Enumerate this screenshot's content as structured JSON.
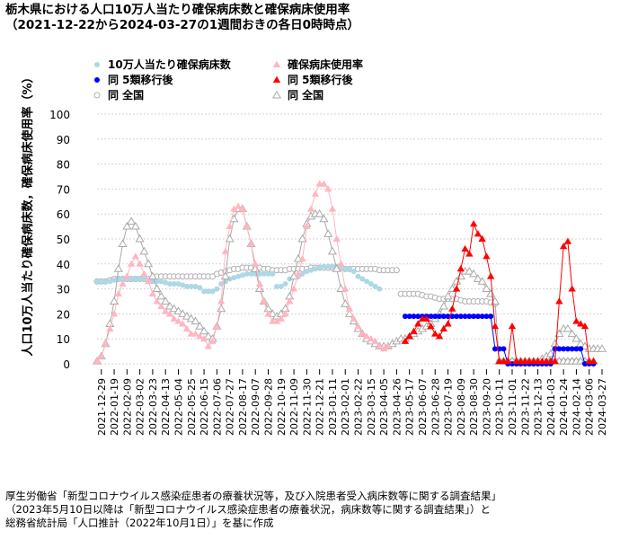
{
  "title": "栃木県における人口10万人当たり確保病床数と確保病床使用率",
  "subtitle": "（2021-12-22から2024-03-27の1週間おきの各日0時時点）",
  "source": [
    "厚生労働省「新型コロナウイルス感染症患者の療養状況等，及び入院患者受入病床数等に関する調査結果」",
    "（2023年5月10日以降は「新型コロナウイルス感染症患者の療養状況，病床数等に関する調査結果」）と",
    "総務省統計局「人口推計（2022年10月1日）」を基に作成"
  ],
  "colors": {
    "beds_pre": "#add8e6",
    "beds_post": "#0000ff",
    "beds_national": "#b0b0b0",
    "usage_pre": "#ffb6c1",
    "usage_post": "#ff0000",
    "usage_national": "#a9a9a9",
    "grid": "#d3d3d3"
  },
  "chart_data": {
    "type": "line",
    "title": "栃木県における人口10万人当たり確保病床数と確保病床使用率",
    "ylabel": "人口10万人当たり確保病床数，確保病床使用率（%）",
    "xlabel": "",
    "ylim": [
      0,
      100
    ],
    "y_ticks": [
      0,
      10,
      20,
      30,
      40,
      50,
      60,
      70,
      80,
      90,
      100
    ],
    "grid": "horizontal dotted",
    "legend_position": "top-left",
    "x_start": "2021-12-22",
    "x_end": "2024-03-27",
    "x_step_days": 7,
    "x_tick_labels": [
      "2021-12-29",
      "2022-01-19",
      "2022-02-09",
      "2022-03-02",
      "2022-03-23",
      "2022-04-13",
      "2022-05-04",
      "2022-05-25",
      "2022-06-15",
      "2022-07-06",
      "2022-07-27",
      "2022-08-17",
      "2022-09-07",
      "2022-09-28",
      "2022-10-19",
      "2022-11-09",
      "2022-11-30",
      "2022-12-21",
      "2023-01-11",
      "2023-02-01",
      "2023-02-22",
      "2023-03-15",
      "2023-04-05",
      "2023-04-26",
      "2023-05-17",
      "2023-06-07",
      "2023-06-28",
      "2023-07-19",
      "2023-08-09",
      "2023-08-30",
      "2023-09-20",
      "2023-10-11",
      "2023-11-01",
      "2023-11-22",
      "2023-12-13",
      "2024-01-03",
      "2024-01-24",
      "2024-02-14",
      "2024-03-06",
      "2024-03-27"
    ],
    "series": [
      {
        "name": "10万人当たり確保病床数",
        "marker": "circle",
        "start": "2021-12-22",
        "values": [
          33,
          33,
          33,
          33,
          33.5,
          34,
          34,
          34,
          34,
          34,
          34,
          34,
          33.5,
          33,
          33,
          33,
          32.5,
          32,
          32,
          32,
          31.5,
          31,
          31,
          31,
          30.5,
          29,
          29,
          29,
          30,
          32,
          33,
          34,
          34.5,
          35,
          35.5,
          36,
          36,
          36,
          36,
          36,
          36,
          36,
          31,
          31,
          32,
          34,
          35,
          35,
          36,
          37,
          37.5,
          38,
          38.5,
          39,
          39,
          39,
          39,
          38.5,
          38,
          38,
          37,
          35,
          34,
          33,
          32,
          31,
          30
        ]
      },
      {
        "name": "同 5類移行後",
        "marker": "circle",
        "start": "2023-05-10",
        "values": [
          19,
          19,
          19,
          19,
          19,
          19,
          19,
          19,
          19,
          19,
          19,
          19,
          19,
          19,
          19,
          19,
          19,
          19,
          19,
          19,
          19,
          6,
          6,
          6,
          0,
          0,
          0,
          0,
          0,
          0,
          0,
          0,
          0,
          0,
          0,
          6,
          6,
          6,
          6,
          6,
          6,
          6,
          0,
          0,
          0
        ]
      },
      {
        "name": "同 全国",
        "marker": "circle-open",
        "start": "2021-12-22",
        "values": [
          33,
          33,
          33,
          33.5,
          34,
          34,
          34,
          34,
          34,
          34,
          34,
          34,
          34,
          34.5,
          35,
          35,
          35,
          35,
          35,
          35,
          35,
          35,
          35,
          35,
          35,
          35,
          35,
          35,
          36,
          36.5,
          37,
          37.5,
          38,
          38,
          38.5,
          38.5,
          38.5,
          38.5,
          38.5,
          38,
          38,
          37.5,
          37.5,
          37.5,
          37.5,
          38,
          38,
          38,
          38,
          38,
          38.5,
          38.5,
          38.5,
          38.5,
          38.5,
          38.5,
          38.5,
          38.5,
          38,
          38,
          38,
          38,
          38,
          38,
          38,
          38,
          37.5,
          37.5,
          37.5,
          37.5,
          37.5,
          28,
          28,
          28,
          28,
          28,
          27.5,
          27,
          27,
          26.5,
          26,
          26,
          26,
          26,
          26,
          25.5,
          25,
          25,
          25,
          25,
          25,
          25,
          24.5,
          24,
          1,
          1,
          1,
          1,
          1,
          1,
          1,
          1,
          1,
          1,
          1,
          1,
          1,
          1,
          1,
          1,
          1,
          1,
          1,
          1,
          1
        ]
      },
      {
        "name": "確保病床使用率",
        "marker": "triangle",
        "start": "2021-12-22",
        "values": [
          1,
          3,
          8,
          14,
          20,
          28,
          32,
          35,
          40,
          43,
          40,
          36,
          33,
          28,
          25,
          23,
          21,
          20,
          18,
          17,
          16,
          14,
          12,
          12,
          11,
          10,
          7,
          9,
          15,
          25,
          45,
          55,
          62,
          63,
          62,
          55,
          48,
          40,
          32,
          25,
          20,
          17,
          17,
          18,
          20,
          25,
          30,
          36,
          42,
          55,
          62,
          68,
          72,
          72,
          70,
          62,
          50,
          40,
          30,
          22,
          18,
          15,
          12,
          11,
          10,
          9,
          7,
          6,
          7
        ]
      },
      {
        "name": "同 5類移行後",
        "marker": "triangle",
        "start": "2023-05-10",
        "values": [
          9,
          11,
          13,
          16,
          18,
          18,
          15,
          12,
          11,
          14,
          16,
          22,
          30,
          38,
          46,
          44,
          56,
          52,
          50,
          43,
          35,
          15,
          1,
          1,
          1,
          15,
          1,
          1,
          1,
          1,
          1,
          1,
          1,
          1,
          1,
          1,
          25,
          47,
          49,
          30,
          17,
          16,
          15,
          1,
          1
        ]
      },
      {
        "name": "同 全国",
        "marker": "triangle-open",
        "start": "2021-12-22",
        "values": [
          1,
          3,
          8,
          16,
          25,
          38,
          48,
          55,
          57,
          55,
          50,
          45,
          40,
          35,
          30,
          27,
          25,
          23,
          22,
          21,
          20,
          19,
          18,
          17,
          15,
          13,
          11,
          10,
          15,
          22,
          35,
          50,
          58,
          62,
          62,
          55,
          48,
          38,
          30,
          25,
          22,
          20,
          19,
          20,
          22,
          27,
          35,
          42,
          50,
          56,
          59,
          60,
          60,
          58,
          52,
          45,
          38,
          30,
          24,
          20,
          17,
          14,
          12,
          10,
          9,
          8,
          7,
          7,
          7,
          8,
          9,
          10,
          10,
          11,
          12,
          13,
          14,
          15,
          16,
          18,
          20,
          23,
          27,
          30,
          33,
          35,
          37,
          37,
          36,
          34,
          33,
          30,
          28,
          25,
          1,
          1,
          1,
          1,
          1,
          1,
          1,
          1,
          1,
          1,
          1,
          1,
          1,
          1,
          1,
          1,
          1,
          1,
          1,
          1,
          1,
          1,
          1
        ]
      },
      {
        "name": "同 全国",
        "marker": "triangle-open",
        "start": "2023-10-11",
        "values": [
          1,
          1,
          1,
          1,
          1,
          1,
          1,
          1,
          1,
          1,
          2,
          3,
          4,
          8,
          12,
          14,
          14,
          12,
          10,
          8,
          7,
          6,
          6,
          6,
          6
        ]
      }
    ]
  }
}
